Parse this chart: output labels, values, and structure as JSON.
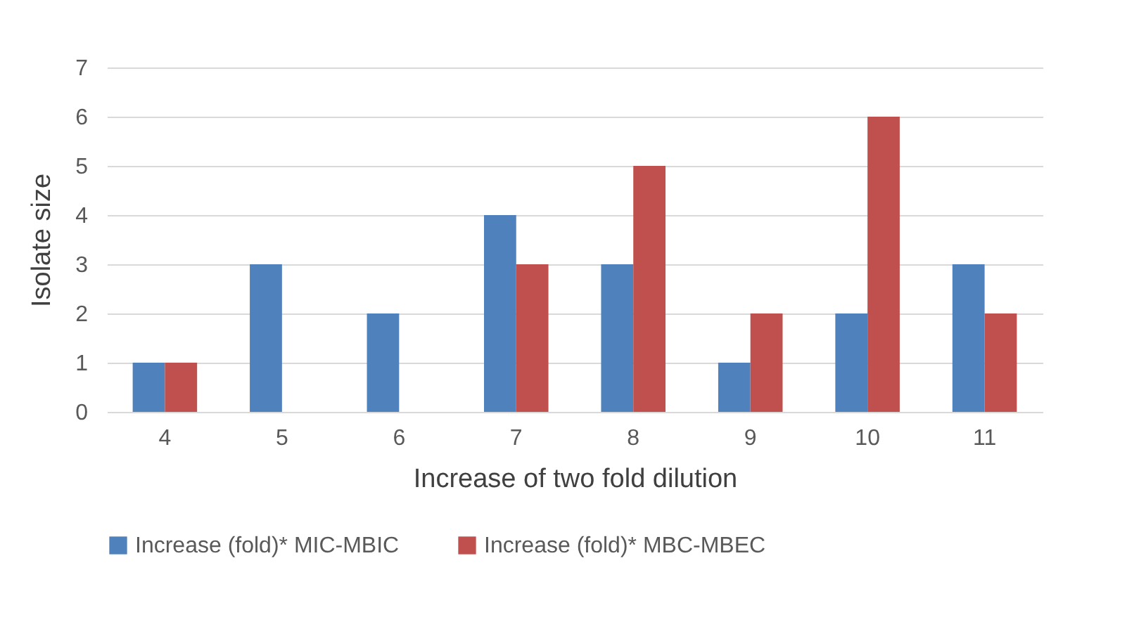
{
  "chart_data": {
    "type": "bar",
    "xlabel": "Increase of two fold dilution",
    "ylabel": "Isolate size",
    "categories": [
      "4",
      "5",
      "6",
      "7",
      "8",
      "9",
      "10",
      "11"
    ],
    "series": [
      {
        "name": "Increase (fold)* MIC-MBIC",
        "color": "#4f81bd",
        "values": [
          1,
          3,
          2,
          4,
          3,
          1,
          2,
          3
        ]
      },
      {
        "name": "Increase (fold)* MBC-MBEC",
        "color": "#c0504d",
        "values": [
          1,
          0,
          0,
          3,
          5,
          2,
          6,
          2
        ]
      }
    ],
    "ylim": [
      0,
      7
    ],
    "yticks": [
      0,
      1,
      2,
      3,
      4,
      5,
      6,
      7
    ],
    "grid": "y",
    "legend": "bottom"
  }
}
